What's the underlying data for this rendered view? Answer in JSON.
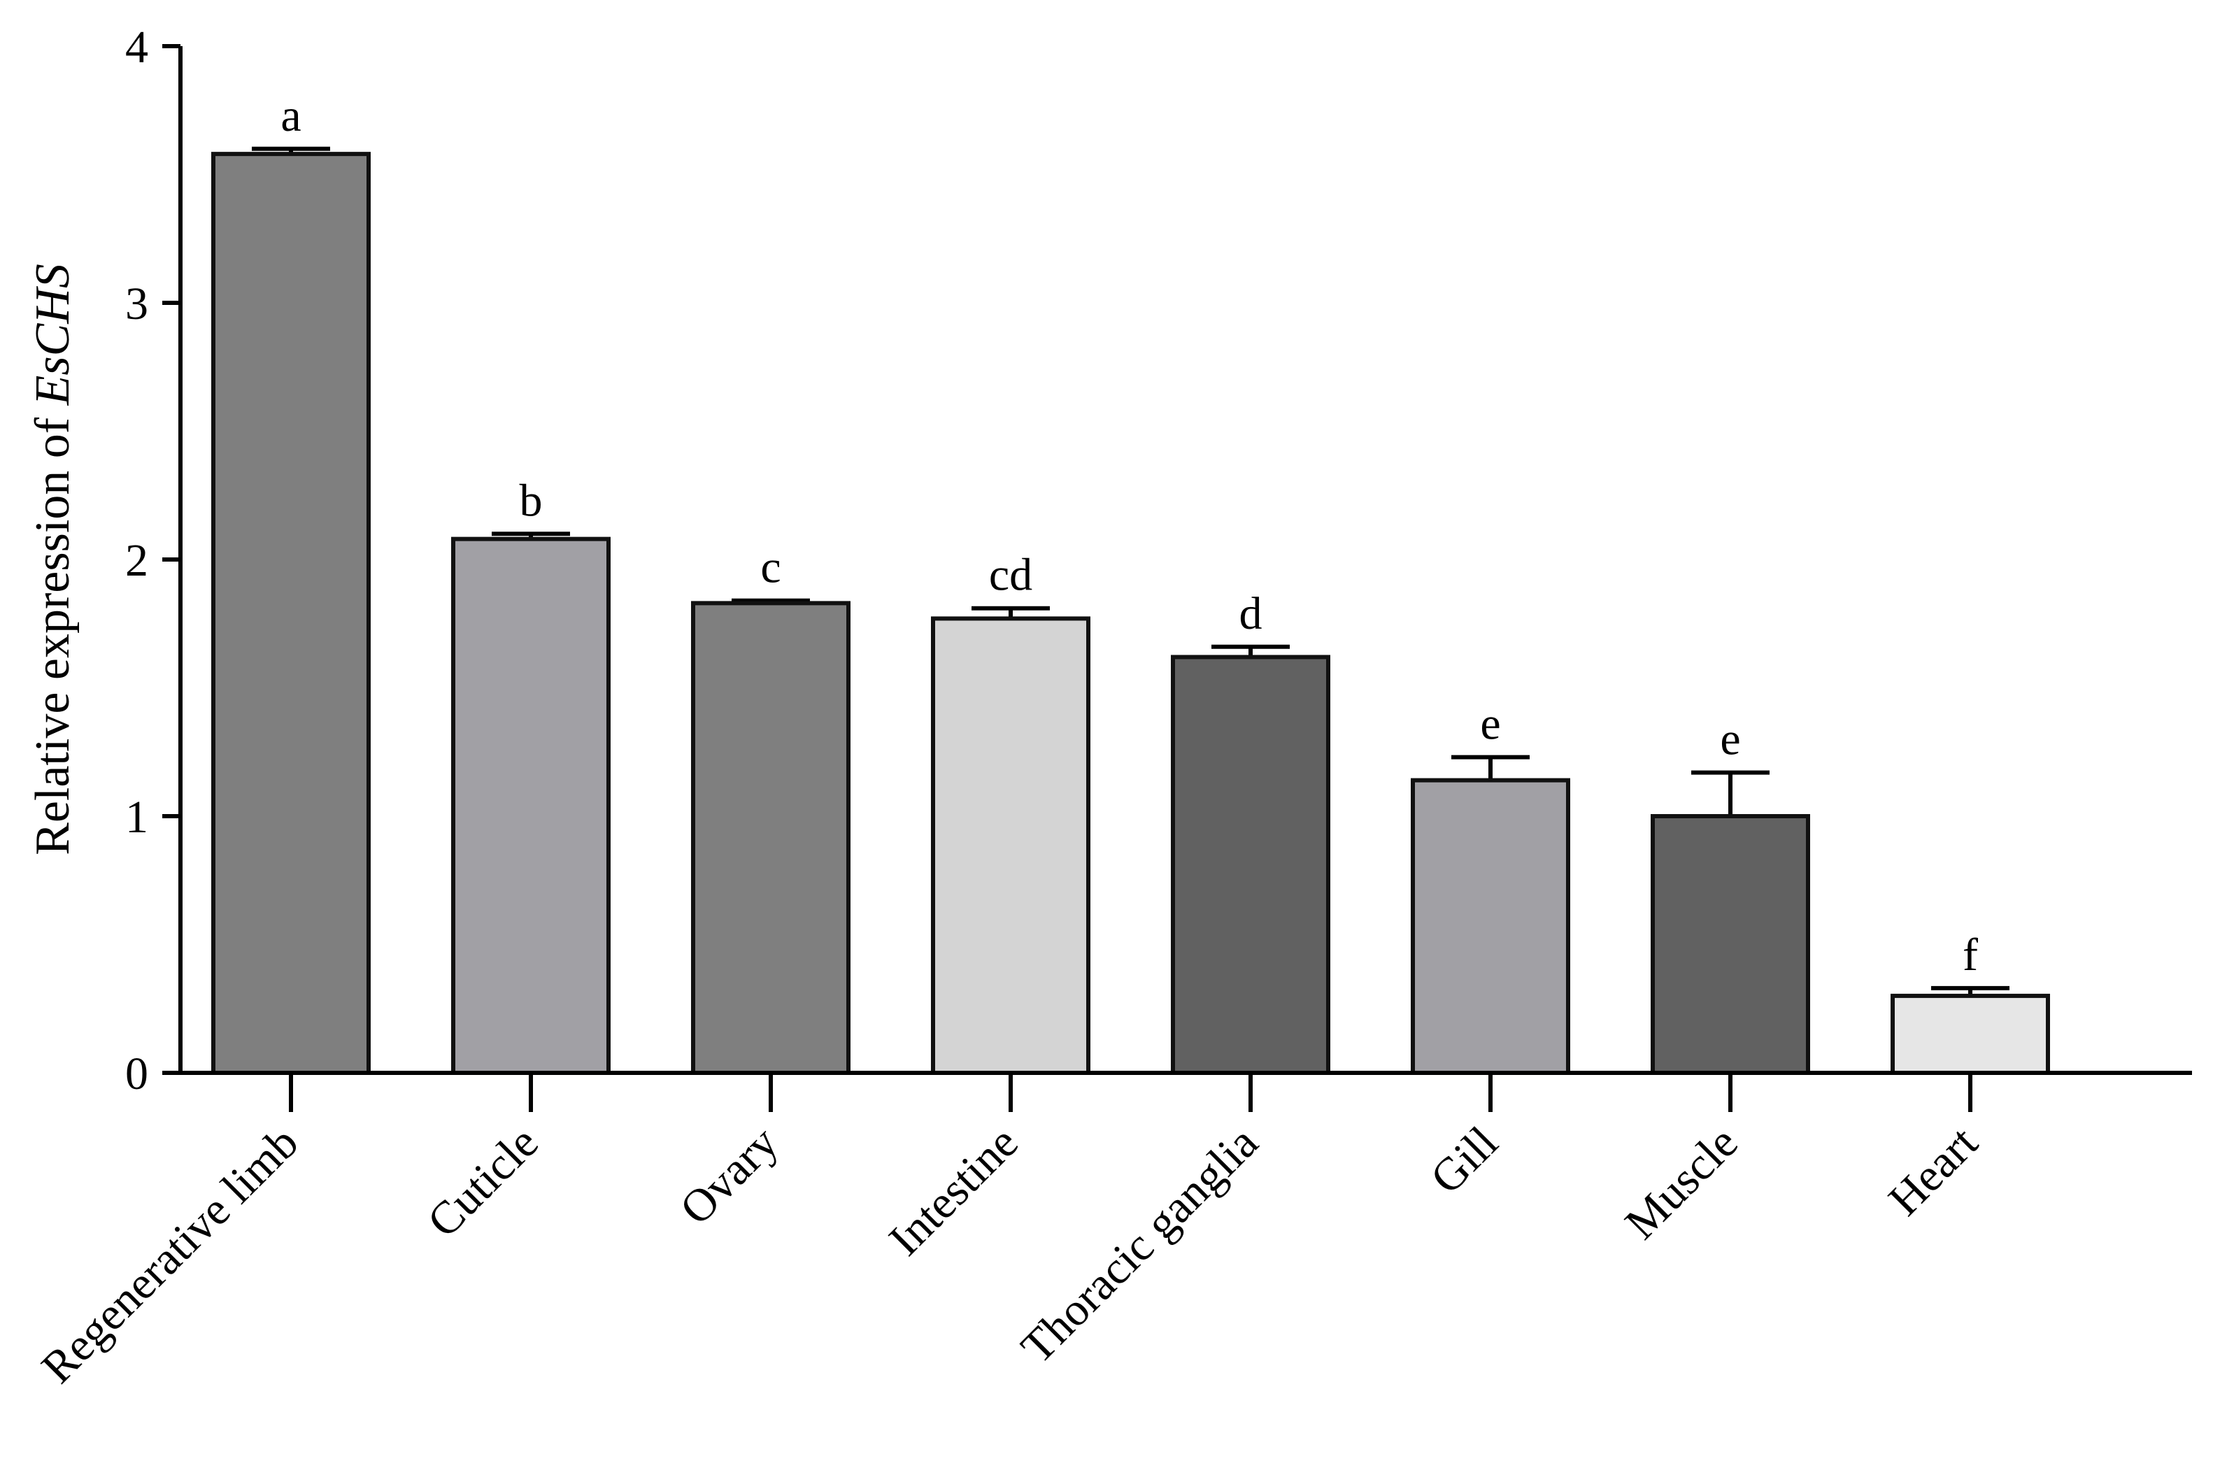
{
  "chart_data": {
    "type": "bar",
    "title": "",
    "xlabel": "",
    "ylabel_prefix": "Relative expression of ",
    "ylabel_gene": "EsCHS",
    "ylim": [
      0,
      4
    ],
    "yticks": [
      0,
      1,
      2,
      3,
      4
    ],
    "grid": false,
    "categories": [
      "Regenerative limb",
      "Cuticle",
      "Ovary",
      "Intestine",
      "Thoracic ganglia",
      "Gill",
      "Muscle",
      "Heart"
    ],
    "values": [
      3.58,
      2.08,
      1.83,
      1.77,
      1.62,
      1.14,
      1.0,
      0.3
    ],
    "errors": [
      0.02,
      0.02,
      0.01,
      0.04,
      0.04,
      0.09,
      0.17,
      0.03
    ],
    "significance": [
      "a",
      "b",
      "c",
      "cd",
      "d",
      "e",
      "e",
      "f"
    ],
    "colors": [
      "#7f7f7f",
      "#a1a0a5",
      "#7f7f7f",
      "#d4d4d4",
      "#616161",
      "#a1a0a5",
      "#616161",
      "#e6e6e6"
    ]
  }
}
